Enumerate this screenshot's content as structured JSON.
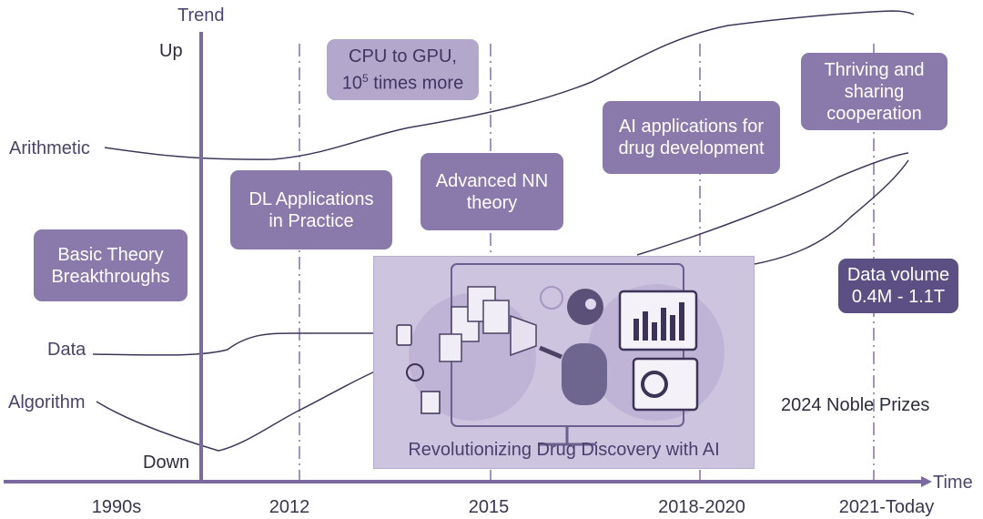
{
  "axes": {
    "y_title": "Trend",
    "y_top": "Up",
    "y_bottom": "Down",
    "x_title": "Time"
  },
  "curves": {
    "arithmetic": "Arithmetic",
    "data": "Data",
    "algorithm": "Algorithm"
  },
  "timeline": [
    "1990s",
    "2012",
    "2015",
    "2018-2020",
    "2021-Today"
  ],
  "milestones": {
    "basic_theory": "Basic Theory\nBreakthroughs",
    "dl_applications": "DL Applications\nin Practice",
    "cpu_gpu": "CPU to GPU,",
    "cpu_gpu_line2": "10",
    "cpu_gpu_sup": "5",
    "cpu_gpu_tail": " times more",
    "advanced_nn": "Advanced NN\ntheory",
    "ai_drug": "AI applications for\ndrug development",
    "thriving": "Thriving and\nsharing\ncooperation",
    "data_volume": "Data volume\n0.4M - 1.1T"
  },
  "panel": {
    "caption": "Revolutionizing Drug Discovery with AI"
  },
  "note": "2024 Noble Prizes",
  "colors": {
    "axis": "#7a6aa0",
    "curve": "#3d3659",
    "box_mid": "#8a7aab",
    "box_light": "#b3a8cc",
    "box_dark": "#5c4f84",
    "panel_bg": "#cdc4df"
  }
}
